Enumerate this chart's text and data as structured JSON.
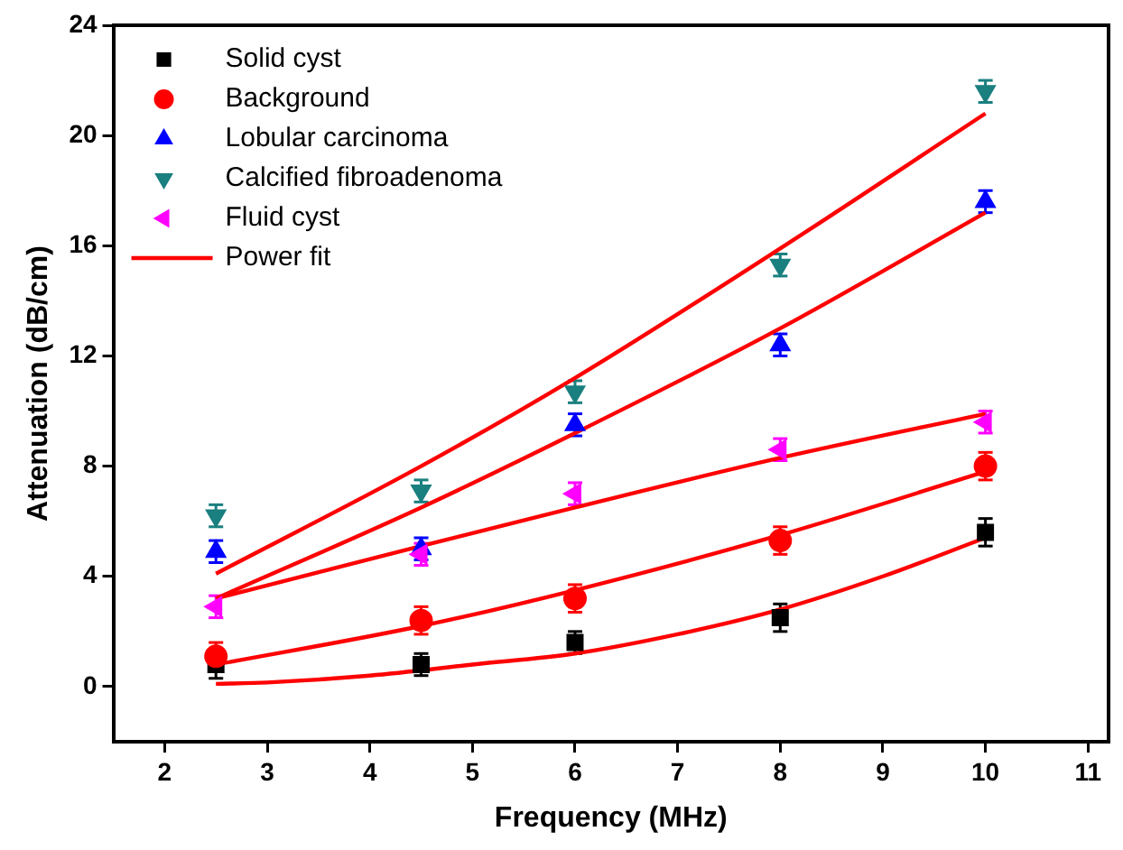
{
  "chart_data": {
    "type": "scatter",
    "xlabel": "Frequency (MHz)",
    "ylabel": "Attenuation (dB/cm)",
    "xlim": [
      1.5,
      11.2
    ],
    "xticks": [
      2,
      3,
      4,
      5,
      6,
      7,
      8,
      9,
      10,
      11
    ],
    "ylim": [
      -2,
      24
    ],
    "yticks": [
      0,
      4,
      8,
      12,
      16,
      20,
      24
    ],
    "grid": false,
    "legend": "top left",
    "x": [
      2.5,
      4.5,
      6,
      8,
      10
    ],
    "series": [
      {
        "name": "Solid cyst",
        "color": "#000000",
        "marker": "square",
        "values": [
          0.8,
          0.8,
          1.6,
          2.5,
          5.6
        ],
        "errors": [
          0.5,
          0.4,
          0.4,
          0.5,
          0.5
        ]
      },
      {
        "name": "Background",
        "color": "#ff0000",
        "marker": "circle",
        "values": [
          1.1,
          2.4,
          3.2,
          5.3,
          8.0
        ],
        "errors": [
          0.5,
          0.5,
          0.5,
          0.5,
          0.5
        ]
      },
      {
        "name": "Lobular carcinoma",
        "color": "#0000ff",
        "marker": "triangle",
        "values": [
          4.9,
          5.0,
          9.5,
          12.4,
          17.6
        ],
        "errors": [
          0.4,
          0.4,
          0.4,
          0.4,
          0.4
        ]
      },
      {
        "name": "Calcified fibroadenoma",
        "color": "#1a7f7f",
        "marker": "triangle-down",
        "values": [
          6.2,
          7.1,
          10.7,
          15.3,
          21.6
        ],
        "errors": [
          0.4,
          0.4,
          0.4,
          0.4,
          0.4
        ]
      },
      {
        "name": "Fluid cyst",
        "color": "#ff00ff",
        "marker": "triangle-left",
        "values": [
          2.9,
          4.8,
          7.0,
          8.6,
          9.6
        ],
        "errors": [
          0.4,
          0.4,
          0.4,
          0.4,
          0.4
        ]
      },
      {
        "name": "Power fit",
        "type": "line",
        "color": "#ff0000",
        "marker": "none",
        "x": [
          2.5,
          3,
          4,
          5,
          6,
          7,
          8,
          9,
          10
        ],
        "values": [
          0.1,
          0.15,
          0.4,
          0.8,
          1.2,
          1.9,
          2.8,
          4.0,
          5.4
        ]
      },
      {
        "type": "line",
        "color": "#ff0000",
        "marker": "none",
        "x": [
          2.5,
          4.5,
          6,
          8,
          10
        ],
        "values": [
          0.8,
          2.2,
          3.5,
          5.5,
          7.8
        ]
      },
      {
        "type": "line",
        "color": "#ff0000",
        "marker": "none",
        "x": [
          2.5,
          4.5,
          6,
          8,
          10
        ],
        "values": [
          3.2,
          5.1,
          6.5,
          8.3,
          9.9
        ]
      },
      {
        "type": "line",
        "color": "#ff0000",
        "marker": "none",
        "x": [
          2.5,
          4.5,
          6,
          8,
          10
        ],
        "values": [
          3.2,
          6.5,
          9.2,
          13.0,
          17.2
        ]
      },
      {
        "type": "line",
        "color": "#ff0000",
        "marker": "none",
        "x": [
          2.5,
          4.5,
          6,
          8,
          10
        ],
        "values": [
          4.1,
          8.0,
          11.2,
          15.9,
          20.8
        ]
      }
    ]
  }
}
